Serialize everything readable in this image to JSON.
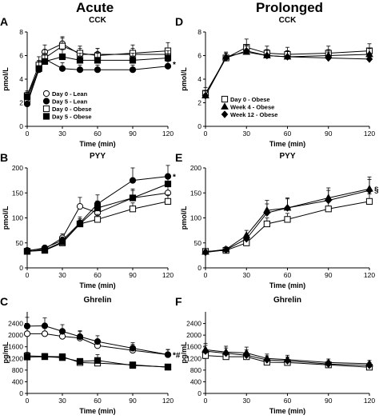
{
  "headers": {
    "left": "Acute",
    "right": "Prolonged"
  },
  "x_axis": {
    "label": "Time (min)",
    "ticks": [
      0,
      30,
      60,
      90,
      120
    ],
    "xlim": [
      0,
      120
    ]
  },
  "legend_acute": [
    {
      "name": "Day 0 - Lean",
      "marker": "open-circle"
    },
    {
      "name": "Day 5 - Lean",
      "marker": "filled-circle"
    },
    {
      "name": "Day 0 - Obese",
      "marker": "open-square"
    },
    {
      "name": "Day 5 - Obese",
      "marker": "filled-square"
    }
  ],
  "legend_prolonged": [
    {
      "name": "Day 0 - Obese",
      "marker": "open-square"
    },
    {
      "name": "Week 4 - Obese",
      "marker": "filled-triangle"
    },
    {
      "name": "Week 12 - Obese",
      "marker": "filled-diamond"
    }
  ],
  "chart_data": [
    {
      "panel": "A",
      "title": "CCK",
      "type": "line",
      "ylabel": "pmol/L",
      "ylim": [
        0,
        8
      ],
      "yticks": [
        0,
        2,
        4,
        6,
        8
      ],
      "x": [
        0,
        10,
        15,
        30,
        45,
        60,
        90,
        120
      ],
      "annotation": "*",
      "series": [
        {
          "name": "Day 0 - Lean",
          "marker": "open-circle",
          "values": [
            2.1,
            5.0,
            6.3,
            7.0,
            6.1,
            6.1,
            6.1,
            6.1
          ],
          "err": [
            0.4,
            0.6,
            0.6,
            0.6,
            0.5,
            0.5,
            0.5,
            0.5
          ]
        },
        {
          "name": "Day 5 - Lean",
          "marker": "filled-circle",
          "values": [
            1.9,
            4.8,
            5.7,
            4.9,
            4.8,
            4.8,
            4.8,
            5.1
          ],
          "err": [
            0.4,
            0.5,
            0.5,
            0.5,
            0.4,
            0.4,
            0.4,
            0.4
          ]
        },
        {
          "name": "Day 0 - Obese",
          "marker": "open-square",
          "values": [
            2.6,
            5.2,
            5.8,
            6.8,
            6.2,
            6.0,
            6.2,
            6.4
          ],
          "err": [
            0.4,
            0.7,
            0.7,
            0.7,
            0.6,
            0.6,
            0.7,
            0.7
          ]
        },
        {
          "name": "Day 5 - Obese",
          "marker": "filled-square",
          "values": [
            2.5,
            4.9,
            5.5,
            5.9,
            5.6,
            5.6,
            5.6,
            5.8
          ],
          "err": [
            0.4,
            0.6,
            0.6,
            0.6,
            0.6,
            0.6,
            0.6,
            0.6
          ]
        }
      ]
    },
    {
      "panel": "D",
      "title": "CCK",
      "type": "line",
      "ylabel": "pmol/L",
      "ylim": [
        0,
        8
      ],
      "yticks": [
        0,
        2,
        4,
        6,
        8
      ],
      "x": [
        0,
        15,
        30,
        45,
        60,
        90,
        120
      ],
      "series": [
        {
          "name": "Day 0 - Obese",
          "marker": "open-square",
          "values": [
            2.8,
            5.8,
            6.7,
            6.2,
            6.1,
            6.2,
            6.4
          ],
          "err": [
            0.5,
            0.4,
            0.7,
            0.6,
            0.6,
            0.6,
            0.6
          ]
        },
        {
          "name": "Week 4 - Obese",
          "marker": "filled-triangle",
          "values": [
            2.6,
            5.9,
            6.3,
            6.0,
            5.9,
            6.0,
            6.1
          ],
          "err": [
            0.4,
            0.4,
            0.5,
            0.5,
            0.5,
            0.5,
            0.5
          ]
        },
        {
          "name": "Week 12 - Obese",
          "marker": "filled-diamond",
          "values": [
            2.6,
            5.8,
            6.4,
            6.0,
            5.9,
            5.8,
            5.7
          ],
          "err": [
            0.4,
            0.4,
            0.5,
            0.5,
            0.5,
            0.5,
            0.5
          ]
        }
      ]
    },
    {
      "panel": "B",
      "title": "PYY",
      "type": "line",
      "ylabel": "pmol/L",
      "ylim": [
        0,
        200
      ],
      "yticks": [
        0,
        50,
        100,
        150,
        200
      ],
      "x": [
        0,
        15,
        30,
        45,
        60,
        90,
        120
      ],
      "annotation": "*",
      "series": [
        {
          "name": "Day 0 - Lean",
          "marker": "open-circle",
          "values": [
            35,
            38,
            60,
            123,
            110,
            140,
            150
          ],
          "err": [
            4,
            5,
            8,
            18,
            15,
            18,
            18
          ]
        },
        {
          "name": "Day 5 - Lean",
          "marker": "filled-circle",
          "values": [
            34,
            40,
            55,
            90,
            128,
            175,
            183
          ],
          "err": [
            4,
            5,
            7,
            12,
            18,
            25,
            22
          ]
        },
        {
          "name": "Day 0 - Obese",
          "marker": "open-square",
          "values": [
            33,
            35,
            50,
            88,
            97,
            118,
            133
          ],
          "err": [
            3,
            4,
            6,
            10,
            10,
            12,
            13
          ]
        },
        {
          "name": "Day 5 - Obese",
          "marker": "filled-square",
          "values": [
            33,
            36,
            52,
            88,
            120,
            140,
            168
          ],
          "err": [
            3,
            4,
            6,
            10,
            14,
            15,
            18
          ]
        }
      ]
    },
    {
      "panel": "E",
      "title": "PYY",
      "type": "line",
      "ylabel": "pmol/L",
      "ylim": [
        0,
        200
      ],
      "yticks": [
        0,
        50,
        100,
        150,
        200
      ],
      "x": [
        0,
        15,
        30,
        45,
        60,
        90,
        120
      ],
      "annotation": "§",
      "series": [
        {
          "name": "Day 0 - Obese",
          "marker": "open-square",
          "values": [
            33,
            35,
            50,
            88,
            97,
            118,
            133
          ],
          "err": [
            4,
            5,
            7,
            12,
            12,
            14,
            15
          ]
        },
        {
          "name": "Week 4 - Obese",
          "marker": "filled-triangle",
          "values": [
            32,
            37,
            65,
            115,
            120,
            140,
            158
          ],
          "err": [
            4,
            5,
            10,
            20,
            20,
            20,
            24
          ]
        },
        {
          "name": "Week 12 - Obese",
          "marker": "filled-diamond",
          "values": [
            31,
            36,
            58,
            110,
            120,
            135,
            155
          ],
          "err": [
            4,
            5,
            8,
            18,
            18,
            20,
            22
          ]
        }
      ]
    },
    {
      "panel": "C",
      "title": "Ghrelin",
      "type": "line",
      "ylabel": "pg/mL",
      "ylim": [
        0,
        2800
      ],
      "yticks": [
        0,
        400,
        800,
        1200,
        1600,
        2000,
        2400
      ],
      "x": [
        0,
        15,
        30,
        45,
        60,
        90,
        120
      ],
      "annotation": "*#",
      "series": [
        {
          "name": "Day 0 - Lean",
          "marker": "open-circle",
          "values": [
            2050,
            2050,
            1960,
            1900,
            1640,
            1480,
            1330
          ],
          "err": [
            300,
            260,
            230,
            220,
            220,
            200,
            180
          ]
        },
        {
          "name": "Day 5 - Lean",
          "marker": "filled-circle",
          "values": [
            2310,
            2320,
            2130,
            1950,
            1780,
            1550,
            1330
          ],
          "err": [
            300,
            270,
            230,
            200,
            200,
            190,
            170
          ]
        },
        {
          "name": "Day 0 - Obese",
          "marker": "open-square",
          "values": [
            1290,
            1270,
            1260,
            1060,
            1040,
            980,
            900
          ],
          "err": [
            120,
            100,
            100,
            90,
            80,
            70,
            60
          ]
        },
        {
          "name": "Day 5 - Obese",
          "marker": "filled-square",
          "values": [
            1250,
            1260,
            1230,
            1100,
            1130,
            960,
            910
          ],
          "err": [
            110,
            100,
            100,
            90,
            200,
            60,
            60
          ]
        }
      ]
    },
    {
      "panel": "F",
      "title": "Ghrelin",
      "type": "line",
      "ylabel": "pg/mL",
      "ylim": [
        0,
        2800
      ],
      "yticks": [
        0,
        400,
        800,
        1200,
        1600,
        2000,
        2400
      ],
      "x": [
        0,
        15,
        30,
        45,
        60,
        90,
        120
      ],
      "series": [
        {
          "name": "Day 0 - Obese",
          "marker": "open-square",
          "values": [
            1300,
            1260,
            1260,
            1070,
            1060,
            980,
            900
          ],
          "err": [
            150,
            120,
            150,
            110,
            100,
            90,
            80
          ]
        },
        {
          "name": "Week 4 - Obese",
          "marker": "filled-triangle",
          "values": [
            1500,
            1420,
            1390,
            1200,
            1160,
            1060,
            1020
          ],
          "err": [
            220,
            200,
            200,
            150,
            150,
            120,
            110
          ]
        },
        {
          "name": "Week 12 - Obese",
          "marker": "filled-diamond",
          "values": [
            1450,
            1380,
            1310,
            1150,
            1120,
            1010,
            960
          ],
          "err": [
            200,
            180,
            180,
            140,
            130,
            110,
            100
          ]
        }
      ]
    }
  ]
}
